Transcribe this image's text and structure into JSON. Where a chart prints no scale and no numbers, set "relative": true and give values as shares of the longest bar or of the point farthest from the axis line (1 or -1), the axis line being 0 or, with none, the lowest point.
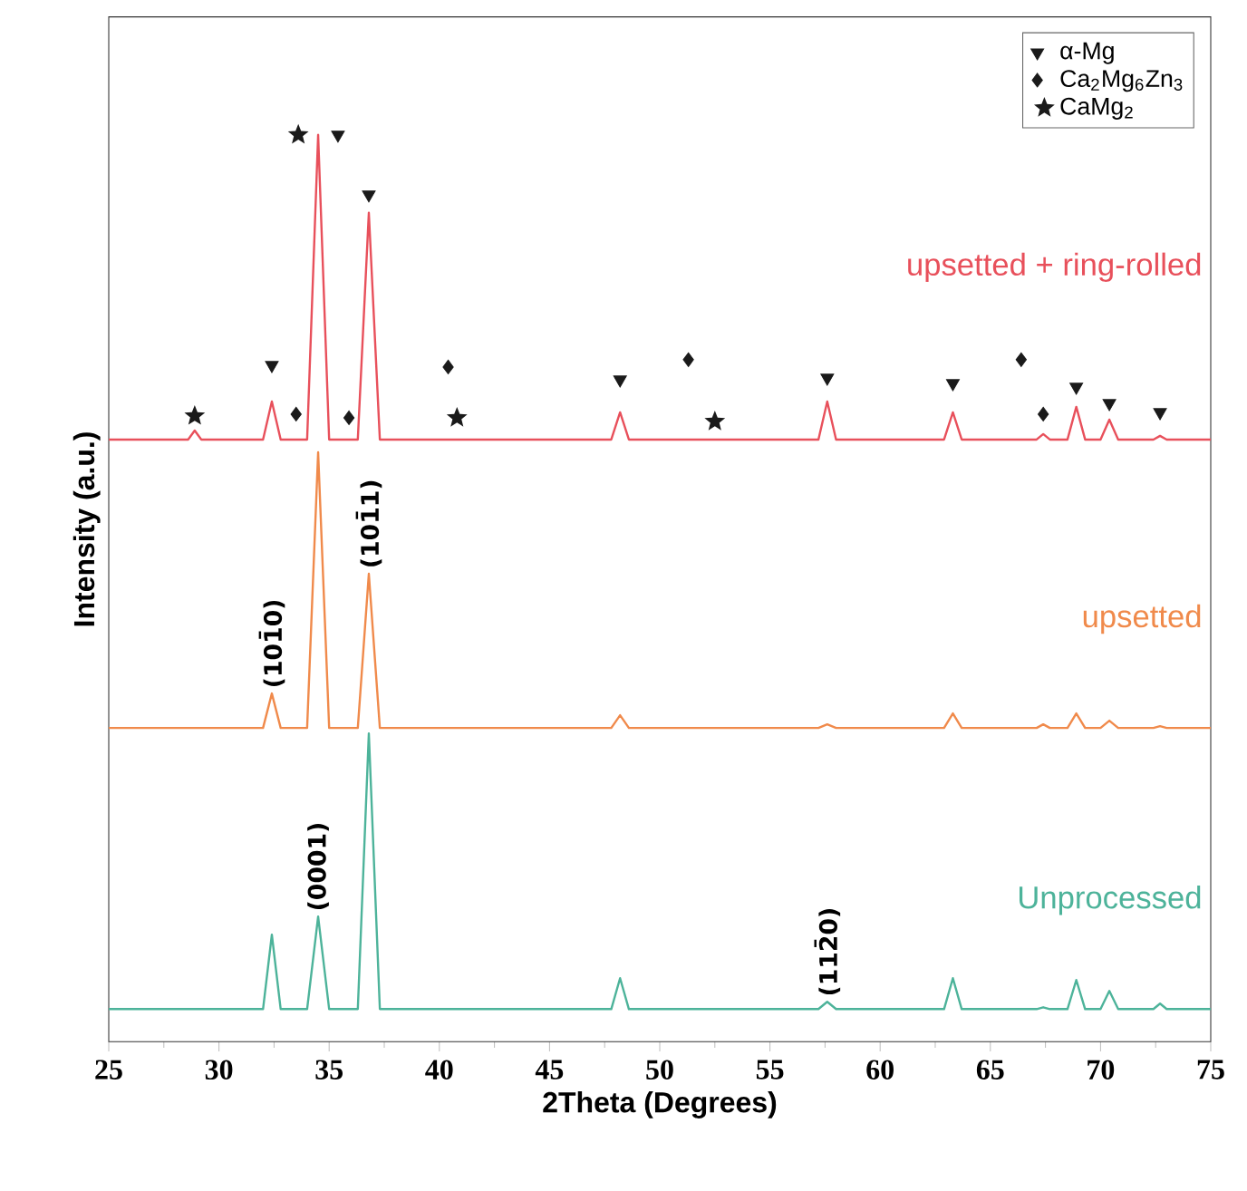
{
  "chart_data": {
    "type": "line",
    "relative": true,
    "xlabel": "2Theta (Degrees)",
    "ylabel": "Intensity (a.u.)",
    "xlim": [
      25,
      75
    ],
    "xticks": [
      25,
      30,
      35,
      40,
      45,
      50,
      55,
      60,
      65,
      70,
      75
    ],
    "x": [
      25,
      28.6,
      28.9,
      29.2,
      32.0,
      32.4,
      32.8,
      34.0,
      34.5,
      35.0,
      36.3,
      36.8,
      37.3,
      47.8,
      48.2,
      48.6,
      57.2,
      57.6,
      58.0,
      62.9,
      63.3,
      63.7,
      67.1,
      67.4,
      67.7,
      68.5,
      68.9,
      69.3,
      70.0,
      70.4,
      70.8,
      72.4,
      72.7,
      73.0,
      75
    ],
    "series": [
      {
        "name": "upsetted + ring-rolled",
        "color": "#e8505b",
        "values": [
          0.664,
          0.664,
          0.674,
          0.664,
          0.664,
          0.706,
          0.664,
          0.664,
          1.0,
          0.664,
          0.664,
          0.914,
          0.664,
          0.664,
          0.694,
          0.664,
          0.664,
          0.706,
          0.664,
          0.664,
          0.694,
          0.664,
          0.664,
          0.67,
          0.664,
          0.664,
          0.7,
          0.664,
          0.664,
          0.686,
          0.664,
          0.664,
          0.668,
          0.664,
          0.664
        ]
      },
      {
        "name": "upsetted",
        "color": "#f08a4b",
        "values": [
          0.346,
          0.346,
          0.346,
          0.346,
          0.346,
          0.384,
          0.346,
          0.346,
          0.65,
          0.346,
          0.346,
          0.516,
          0.346,
          0.346,
          0.36,
          0.346,
          0.346,
          0.35,
          0.346,
          0.346,
          0.362,
          0.346,
          0.346,
          0.35,
          0.346,
          0.346,
          0.362,
          0.346,
          0.346,
          0.354,
          0.346,
          0.346,
          0.348,
          0.346,
          0.346
        ]
      },
      {
        "name": "Unprocessed",
        "color": "#4db39a",
        "values": [
          0.036,
          0.036,
          0.036,
          0.036,
          0.036,
          0.118,
          0.036,
          0.036,
          0.138,
          0.036,
          0.036,
          0.34,
          0.036,
          0.036,
          0.07,
          0.036,
          0.036,
          0.044,
          0.036,
          0.036,
          0.07,
          0.036,
          0.036,
          0.038,
          0.036,
          0.036,
          0.068,
          0.036,
          0.036,
          0.056,
          0.036,
          0.036,
          0.042,
          0.036,
          0.036
        ]
      },
      {
        "name": "α-Mg",
        "type": "scatter",
        "marker": "triangle",
        "color": "#1a1a1a",
        "x": [
          32.4,
          35.4,
          36.8,
          48.2,
          57.6,
          63.3,
          68.9,
          70.4,
          72.7
        ],
        "values": [
          0.746,
          1.0,
          0.934,
          0.73,
          0.732,
          0.726,
          0.722,
          0.704,
          0.694
        ]
      },
      {
        "name": "Ca$_{2}$Mg$_{6}$Zn$_{3}$",
        "type": "scatter",
        "marker": "diamond",
        "color": "#1a1a1a",
        "x": [
          33.5,
          35.9,
          40.4,
          51.3,
          66.4,
          67.4
        ],
        "values": [
          0.692,
          0.688,
          0.744,
          0.752,
          0.752,
          0.692
        ]
      },
      {
        "name": "CaMg$_{2}$",
        "type": "scatter",
        "marker": "star",
        "color": "#1a1a1a",
        "x": [
          28.9,
          33.6,
          40.8,
          52.5
        ],
        "values": [
          0.69,
          1.0,
          0.688,
          0.684
        ]
      }
    ],
    "annotations": [
      {
        "text": "(101̄0)",
        "x": 32.4,
        "y": 0.384
      },
      {
        "text": "(101̄1)",
        "x": 36.8,
        "y": 0.516
      },
      {
        "text": "(0001)",
        "x": 34.5,
        "y": 0.138
      },
      {
        "text": "(112̄0)",
        "x": 57.6,
        "y": 0.044
      }
    ],
    "legend": "top right"
  }
}
